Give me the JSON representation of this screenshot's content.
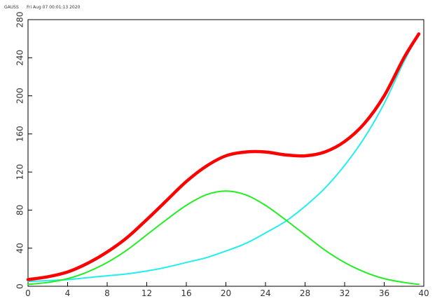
{
  "header": {
    "program": "GAUSS",
    "timestamp": "Fri Aug 07 00:01:13 2020"
  },
  "colors": {
    "sum": "#ff0000",
    "gaussian": "#22ee22",
    "exponential": "#22eeee",
    "axis": "#000000",
    "text": "#333333"
  },
  "chart_data": {
    "type": "line",
    "title": "",
    "xlabel": "",
    "ylabel": "",
    "xlim": [
      0,
      40
    ],
    "ylim": [
      0,
      280
    ],
    "grid": false,
    "legend": "none",
    "xticks": [
      "0",
      "4",
      "8",
      "12",
      "16",
      "20",
      "24",
      "28",
      "32",
      "36",
      "40"
    ],
    "yticks": [
      "0",
      "40",
      "80",
      "120",
      "160",
      "200",
      "240",
      "280"
    ],
    "series": [
      {
        "color": "#22eeee",
        "x": [
          0,
          2,
          4,
          6,
          8,
          10,
          12,
          14,
          16,
          18,
          20,
          22,
          24,
          26,
          28,
          30,
          32,
          34,
          36,
          38,
          39.5
        ],
        "y": [
          5,
          6,
          7,
          9,
          11,
          13,
          16,
          20,
          25,
          30,
          37,
          45,
          56,
          68,
          84,
          103,
          127,
          156,
          192,
          236,
          265
        ]
      },
      {
        "color": "#22ee22",
        "x": [
          0,
          2,
          4,
          6,
          8,
          10,
          12,
          14,
          16,
          18,
          20,
          22,
          24,
          26,
          28,
          30,
          32,
          34,
          36,
          38,
          39.5
        ],
        "y": [
          2,
          4,
          8,
          15,
          25,
          38,
          54,
          70,
          85,
          96,
          100,
          96,
          85,
          70,
          54,
          38,
          25,
          15,
          8,
          4,
          2
        ]
      },
      {
        "color": "#ff0000",
        "x": [
          0,
          2,
          4,
          6,
          8,
          10,
          12,
          14,
          16,
          18,
          20,
          22,
          24,
          26,
          28,
          30,
          32,
          34,
          36,
          38,
          39.5
        ],
        "y": [
          7,
          10,
          15,
          24,
          36,
          51,
          70,
          90,
          110,
          126,
          137,
          141,
          141,
          138,
          137,
          141,
          152,
          171,
          200,
          240,
          265
        ]
      }
    ]
  }
}
